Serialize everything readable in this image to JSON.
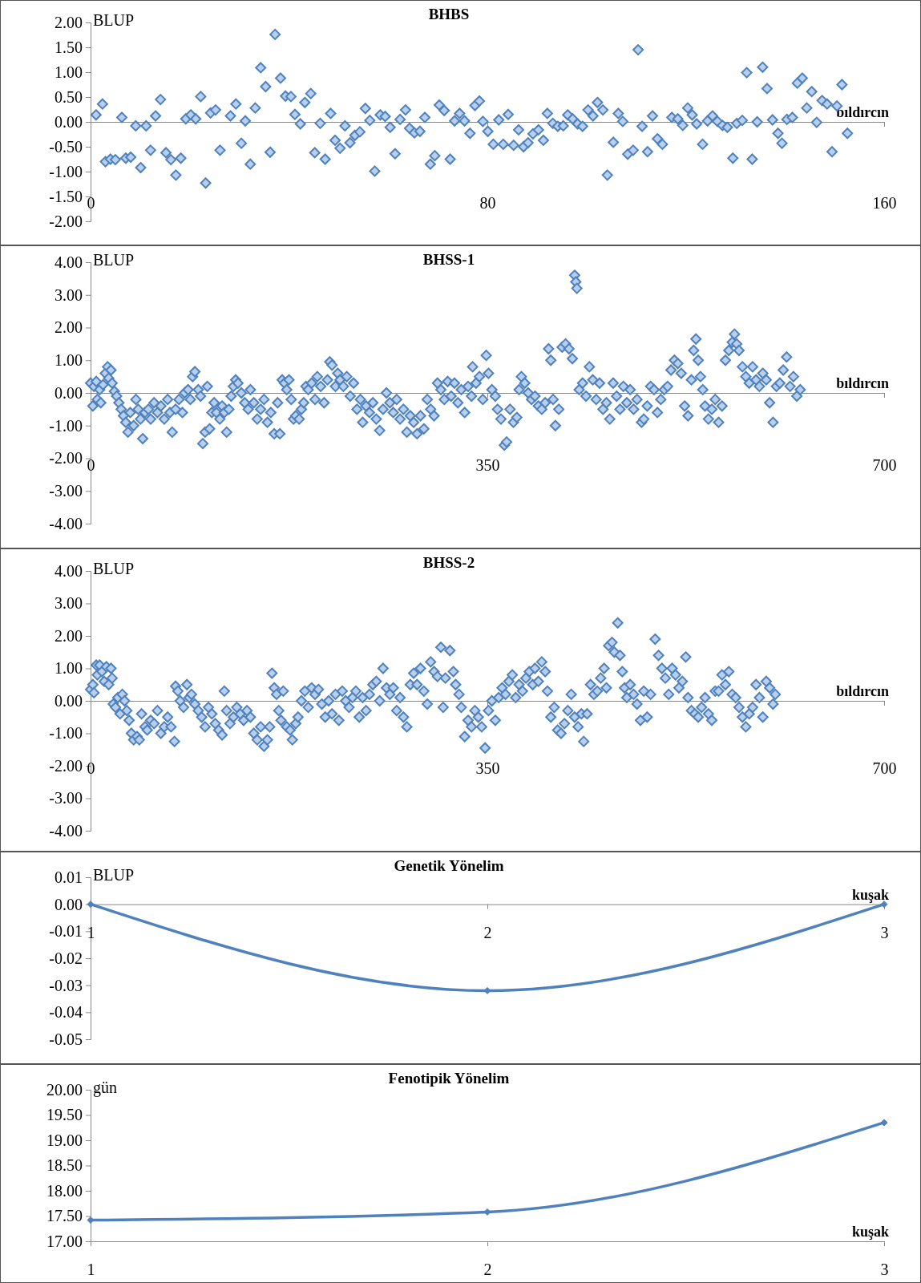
{
  "chart_data": [
    {
      "type": "scatter",
      "title": "BHBS",
      "xlabel": "bıldırcın",
      "ylabel": "BLUP",
      "color": "#4f81bd",
      "marker": "diamond",
      "xlim": [
        0,
        160
      ],
      "xticks": [
        0,
        80,
        160
      ],
      "ylim": [
        -2,
        2
      ],
      "yticks": [
        {
          "value": -2,
          "label": "-2.00"
        },
        {
          "value": -1.5,
          "label": "-1.50"
        },
        {
          "value": -1,
          "label": "-1.00"
        },
        {
          "value": -0.5,
          "label": "-0.50"
        },
        {
          "value": 0,
          "label": "0.00"
        },
        {
          "value": 0.5,
          "label": "0.50"
        },
        {
          "value": 1,
          "label": "1.00"
        },
        {
          "value": 1.5,
          "label": "1.50"
        },
        {
          "value": 2,
          "label": "2.00"
        }
      ],
      "x": [
        1.1,
        2.4,
        3.0,
        4.0,
        5.0,
        6.3,
        7.1,
        8.1,
        9.1,
        10.1,
        11.2,
        12.1,
        13.1,
        14.1,
        15.2,
        16.2,
        17.2,
        18.2,
        19.2,
        20.2,
        21.2,
        22.2,
        23.2,
        24.2,
        25.2,
        26.1,
        28.2,
        29.3,
        30.4,
        31.2,
        32.2,
        33.2,
        34.3,
        35.3,
        36.2,
        37.2,
        38.3,
        39.3,
        40.4,
        41.2,
        42.3,
        43.2,
        44.4,
        45.2,
        46.3,
        47.3,
        48.4,
        49.3,
        50.3,
        51.3,
        52.3,
        53.3,
        54.3,
        55.4,
        56.3,
        57.3,
        58.4,
        59.4,
        60.4,
        61.4,
        62.4,
        63.5,
        64.3,
        65.3,
        66.4,
        67.4,
        68.5,
        69.4,
        70.3,
        71.3,
        72.5,
        73.4,
        74.4,
        75.4,
        76.5,
        77.5,
        78.4,
        79.1,
        80.1,
        81.2,
        82.3,
        83.2,
        84.2,
        85.3,
        86.3,
        87.3,
        88.2,
        89.2,
        90.3,
        91.3,
        92.1,
        93.2,
        94.2,
        95.3,
        96.2,
        97.2,
        98.2,
        99.2,
        100.3,
        101.3,
        102.2,
        103.3,
        104.2,
        105.4,
        106.4,
        107.3,
        108.3,
        109.4,
        110.4,
        111.2,
        112.3,
        113.3,
        114.3,
        115.3,
        117.2,
        118.4,
        119.4,
        120.4,
        121.3,
        122.2,
        123.4,
        124.4,
        125.4,
        126.4,
        127.4,
        128.4,
        129.5,
        130.3,
        131.4,
        132.3,
        133.4,
        134.4,
        135.5,
        136.4,
        137.5,
        138.6,
        139.4,
        140.4,
        141.5,
        142.5,
        143.5,
        144.4,
        145.4,
        146.4,
        147.5,
        148.5,
        149.5,
        150.5,
        151.5,
        152.6
      ],
      "values": [
        0.14,
        0.36,
        -0.8,
        -0.75,
        -0.76,
        0.09,
        -0.73,
        -0.71,
        -0.08,
        -0.92,
        -0.08,
        -0.57,
        0.12,
        0.45,
        -0.62,
        -0.76,
        -1.07,
        -0.73,
        0.06,
        0.14,
        0.06,
        0.51,
        -1.23,
        0.18,
        0.24,
        -0.57,
        0.12,
        0.36,
        -0.43,
        0.02,
        -0.85,
        0.28,
        1.09,
        0.71,
        -0.61,
        1.76,
        0.88,
        0.52,
        0.51,
        0.15,
        -0.04,
        0.39,
        0.57,
        -0.62,
        -0.03,
        -0.75,
        0.17,
        -0.37,
        -0.53,
        -0.08,
        -0.42,
        -0.27,
        -0.2,
        0.27,
        0.03,
        -0.99,
        0.14,
        0.11,
        -0.11,
        -0.64,
        0.05,
        0.24,
        -0.13,
        -0.22,
        -0.19,
        0.09,
        -0.85,
        -0.68,
        0.34,
        0.23,
        -0.75,
        0.02,
        0.17,
        0.02,
        -0.23,
        0.33,
        0.42,
        0.01,
        -0.19,
        -0.45,
        0.04,
        -0.45,
        0.15,
        -0.47,
        -0.16,
        -0.5,
        -0.42,
        -0.24,
        -0.16,
        -0.37,
        0.17,
        -0.03,
        -0.09,
        -0.08,
        0.14,
        0.06,
        -0.04,
        -0.09,
        0.24,
        0.12,
        0.39,
        0.24,
        -1.07,
        -0.41,
        0.17,
        0.01,
        -0.65,
        -0.57,
        1.45,
        -0.09,
        -0.6,
        0.12,
        -0.34,
        -0.45,
        0.09,
        0.06,
        -0.07,
        0.28,
        0.14,
        -0.04,
        -0.45,
        0.02,
        0.12,
        0.01,
        -0.07,
        -0.11,
        -0.73,
        -0.03,
        0.03,
        0.99,
        -0.75,
        0.0,
        1.1,
        0.67,
        0.04,
        -0.23,
        -0.43,
        0.05,
        0.09,
        0.78,
        0.88,
        0.28,
        0.61,
        -0.01,
        0.43,
        0.36,
        -0.6,
        0.32,
        0.75,
        -0.23
      ]
    },
    {
      "type": "scatter",
      "title": "BHSS-1",
      "xlabel": "bıldırcın",
      "ylabel": "BLUP",
      "color": "#4f81bd",
      "marker": "diamond",
      "xlim": [
        0,
        700
      ],
      "xticks": [
        0,
        350,
        700
      ],
      "ylim": [
        -4,
        4
      ],
      "yticks": [
        {
          "value": -4,
          "label": "-4.00"
        },
        {
          "value": -3,
          "label": "-3.00"
        },
        {
          "value": -2,
          "label": "-2.00"
        },
        {
          "value": -1,
          "label": "-1.00"
        },
        {
          "value": 0,
          "label": "0.00"
        },
        {
          "value": 1,
          "label": "1.00"
        },
        {
          "value": 2,
          "label": "2.00"
        },
        {
          "value": 3,
          "label": "3.00"
        },
        {
          "value": 4,
          "label": "4.00"
        }
      ],
      "x": [
        0,
        2,
        3,
        5,
        6,
        8,
        9,
        11,
        13,
        15,
        16,
        18,
        19,
        21,
        23,
        25,
        27,
        29,
        31,
        33,
        35,
        38,
        40,
        42,
        44,
        46,
        48,
        51,
        53,
        56,
        59,
        62,
        65,
        68,
        70,
        72,
        75,
        78,
        81,
        83,
        86,
        88,
        90,
        92,
        95,
        97,
        99,
        101,
        103,
        105,
        107,
        109,
        111,
        114,
        116,
        118,
        120,
        122,
        124,
        126,
        128,
        130,
        133,
        136,
        139,
        141,
        144,
        147,
        150,
        153,
        156,
        159,
        162,
        165,
        167,
        169,
        171,
        173,
        175,
        177,
        179,
        181,
        184,
        186,
        188,
        190,
        192,
        195,
        198,
        200,
        203,
        206,
        209,
        211,
        213,
        216,
        218,
        220,
        223,
        226,
        229,
        232,
        235,
        238,
        240,
        243,
        246,
        249,
        252,
        255,
        258,
        261,
        264,
        267,
        270,
        273,
        276,
        279,
        282,
        285,
        288,
        291,
        294,
        297,
        300,
        303,
        306,
        309,
        312,
        315,
        318,
        321,
        324,
        327,
        330,
        333,
        336,
        337,
        340,
        343,
        346,
        349,
        351,
        354,
        357,
        359,
        362,
        365,
        367,
        370,
        373,
        376,
        378,
        380,
        383,
        386,
        389,
        392,
        395,
        398,
        401,
        404,
        406,
        408,
        410,
        413,
        416,
        419,
        422,
        425,
        427,
        428,
        429,
        431,
        434,
        437,
        440,
        443,
        446,
        449,
        452,
        455,
        458,
        461,
        464,
        467,
        470,
        473,
        476,
        479,
        482,
        486,
        488,
        491,
        494,
        497,
        500,
        503,
        506,
        509,
        512,
        515,
        518,
        521,
        524,
        527,
        530,
        532,
        534,
        536,
        538,
        540,
        542,
        545,
        548,
        551,
        554,
        557,
        560,
        563,
        566,
        568,
        570,
        572,
        575,
        578,
        581,
        584,
        587,
        590,
        593,
        596,
        599,
        602,
        605,
        608,
        611,
        614,
        617,
        620,
        623,
        626
      ],
      "values": [
        0.3,
        -0.4,
        0.2,
        0.35,
        -0.2,
        0.1,
        -0.3,
        0.25,
        0.6,
        0.8,
        0.45,
        0.7,
        0.3,
        0.05,
        -0.1,
        -0.3,
        -0.5,
        -0.7,
        -0.9,
        -1.2,
        -0.6,
        -1.0,
        -0.2,
        -0.5,
        -0.8,
        -1.4,
        -0.6,
        -0.5,
        -0.8,
        -0.3,
        -0.6,
        -0.4,
        -0.8,
        -0.2,
        -0.6,
        -1.2,
        -0.5,
        -0.2,
        -0.6,
        0,
        0.1,
        -0.2,
        0.5,
        0.65,
        0.1,
        -0.1,
        -1.55,
        -1.2,
        0.2,
        -1.1,
        -0.6,
        -0.3,
        -0.6,
        -0.8,
        -0.4,
        -0.6,
        -1.2,
        -0.5,
        -0.1,
        0.2,
        0.4,
        0.3,
        0,
        -0.3,
        -0.5,
        0.1,
        -0.3,
        -0.8,
        -0.5,
        -0.2,
        -0.9,
        -0.6,
        -1.25,
        -0.3,
        -1.25,
        0.4,
        0.3,
        0.1,
        0.4,
        -0.2,
        -0.8,
        -0.7,
        -0.8,
        -0.5,
        -0.3,
        0.2,
        0.1,
        0.3,
        -0.2,
        0.5,
        0.2,
        -0.3,
        0.4,
        0.95,
        0.85,
        0.2,
        0.6,
        0.4,
        0.2,
        0.5,
        -0.1,
        0.3,
        -0.5,
        -0.2,
        -0.9,
        -0.4,
        -0.6,
        -0.3,
        -0.8,
        -1.15,
        -0.5,
        0,
        -0.3,
        -0.6,
        -0.2,
        -0.8,
        -0.5,
        -1.2,
        -0.7,
        -0.9,
        -1.25,
        -0.7,
        -1.1,
        -0.2,
        -0.5,
        -0.7,
        0.3,
        0.1,
        -0.2,
        0.35,
        -0.1,
        0.3,
        -0.3,
        0.1,
        -0.6,
        0.2,
        -0.1,
        0.8,
        0.3,
        0.5,
        -0.2,
        1.15,
        0.6,
        0.1,
        -0.1,
        -0.5,
        -0.8,
        -1.6,
        -1.5,
        -0.5,
        -0.9,
        -0.75,
        0.1,
        0.5,
        0.3,
        0,
        -0.2,
        -0.1,
        -0.4,
        -0.5,
        -0.3,
        1.35,
        1.0,
        -0.2,
        -1.0,
        -0.5,
        1.4,
        1.5,
        1.35,
        1.05,
        3.6,
        3.4,
        3.2,
        0.1,
        0.3,
        -0.1,
        0.8,
        0.4,
        -0.2,
        0.3,
        -0.5,
        -0.3,
        -0.8,
        0.3,
        -0.1,
        -0.5,
        0.2,
        -0.3,
        0.1,
        -0.5,
        -0.2,
        -0.9,
        -0.8,
        -0.4,
        0.2,
        0.1,
        -0.6,
        -0.2,
        0.1,
        0.2,
        0.7,
        1.0,
        0.9,
        0.6,
        -0.4,
        -0.7,
        0.4,
        1.3,
        1.65,
        1.0,
        0.5,
        0.1,
        -0.4,
        -0.8,
        -0.5,
        -0.2,
        -0.9,
        -0.4,
        1.0,
        1.3,
        1.55,
        1.8,
        1.5,
        1.3,
        0.8,
        0.5,
        0.3,
        0.8,
        0.4,
        0.2,
        0.6,
        0.4,
        -0.3,
        -0.9,
        0.2,
        0.3,
        0.7,
        1.1,
        0.2,
        0.5,
        -0.1,
        0.1
      ]
    },
    {
      "type": "scatter",
      "title": "BHSS-2",
      "xlabel": "bıldırcın",
      "ylabel": "BLUP",
      "color": "#4f81bd",
      "marker": "diamond",
      "xlim": [
        0,
        700
      ],
      "xticks": [
        0,
        350,
        700
      ],
      "ylim": [
        -4,
        4
      ],
      "yticks": [
        {
          "value": -4,
          "label": "-4.00"
        },
        {
          "value": -3,
          "label": "-3.00"
        },
        {
          "value": -2,
          "label": "-2.00"
        },
        {
          "value": -1,
          "label": "-1.00"
        },
        {
          "value": 0,
          "label": "0.00"
        },
        {
          "value": 1,
          "label": "1.00"
        },
        {
          "value": 2,
          "label": "2.00"
        },
        {
          "value": 3,
          "label": "3.00"
        },
        {
          "value": 4,
          "label": "4.00"
        }
      ],
      "x": [
        0,
        2,
        3,
        5,
        6,
        8,
        10,
        12,
        14,
        16,
        18,
        19,
        20,
        22,
        24,
        26,
        28,
        30,
        32,
        34,
        36,
        38,
        41,
        43,
        45,
        48,
        50,
        53,
        56,
        59,
        62,
        65,
        68,
        71,
        74,
        75,
        77,
        79,
        82,
        85,
        87,
        89,
        92,
        95,
        98,
        101,
        104,
        107,
        110,
        113,
        116,
        118,
        120,
        123,
        126,
        129,
        132,
        135,
        138,
        141,
        144,
        147,
        150,
        153,
        156,
        158,
        160,
        162,
        164,
        166,
        168,
        170,
        173,
        176,
        178,
        181,
        183,
        186,
        189,
        192,
        195,
        198,
        201,
        204,
        207,
        210,
        213,
        216,
        219,
        222,
        225,
        228,
        231,
        234,
        237,
        240,
        243,
        246,
        249,
        252,
        255,
        258,
        261,
        264,
        267,
        270,
        273,
        276,
        279,
        282,
        285,
        288,
        291,
        294,
        297,
        300,
        303,
        306,
        309,
        311,
        313,
        317,
        320,
        322,
        325,
        327,
        330,
        333,
        336,
        339,
        342,
        345,
        348,
        351,
        354,
        357,
        360,
        363,
        366,
        369,
        372,
        375,
        378,
        381,
        384,
        387,
        390,
        392,
        395,
        398,
        401,
        403,
        406,
        409,
        412,
        415,
        418,
        421,
        424,
        427,
        430,
        433,
        435,
        438,
        441,
        444,
        447,
        450,
        453,
        455,
        457,
        460,
        462,
        465,
        467,
        469,
        471,
        473,
        476,
        479,
        482,
        485,
        488,
        491,
        494,
        498,
        501,
        504,
        507,
        510,
        513,
        516,
        519,
        522,
        525,
        527,
        530,
        533,
        536,
        539,
        542,
        545,
        548,
        551,
        554,
        557,
        560,
        563,
        566,
        569,
        572,
        575,
        578,
        581,
        584,
        587,
        590,
        593,
        596,
        599,
        602,
        604
      ],
      "values": [
        0.35,
        0.5,
        0.25,
        1.1,
        0.8,
        1.1,
        0.9,
        0.6,
        1.05,
        0.5,
        1.0,
        0.7,
        -0.1,
        -0.2,
        0.1,
        -0.4,
        0.2,
        0,
        -0.3,
        -0.6,
        -1.0,
        -1.2,
        -1.1,
        -1.2,
        -0.4,
        -0.8,
        -0.9,
        -0.6,
        -0.7,
        -0.3,
        -1.0,
        -0.8,
        -0.5,
        -0.8,
        -1.25,
        0.45,
        0.3,
        0,
        -0.2,
        0.5,
        0.1,
        0.2,
        -0.1,
        -0.3,
        -0.5,
        -0.8,
        -0.2,
        -0.4,
        -0.7,
        -0.9,
        -1.05,
        0.3,
        -0.3,
        -0.7,
        -0.5,
        -0.2,
        -0.4,
        -0.6,
        -0.3,
        -0.5,
        -1.0,
        -1.2,
        -0.8,
        -1.4,
        -1.2,
        -0.8,
        0.85,
        0.4,
        0.2,
        -0.3,
        -0.6,
        0.3,
        -0.8,
        -0.9,
        -1.2,
        -0.7,
        -0.5,
        0,
        0.3,
        -0.2,
        0.4,
        0.2,
        0.35,
        -0.1,
        -0.5,
        0,
        -0.4,
        0.2,
        -0.6,
        0.3,
        0,
        -0.2,
        0.1,
        0.3,
        -0.5,
        0.1,
        -0.3,
        0.2,
        0.5,
        0.6,
        0,
        1.0,
        0.4,
        0.2,
        0.4,
        -0.3,
        0.1,
        -0.5,
        -0.8,
        0.5,
        0.85,
        0.5,
        1.0,
        0.3,
        -0.1,
        1.2,
        0.9,
        0.75,
        1.65,
        -0.2,
        0.7,
        1.55,
        0.9,
        0.5,
        0.2,
        -0.2,
        -1.1,
        -0.6,
        -0.8,
        -0.3,
        -0.5,
        -0.8,
        -1.45,
        -0.3,
        0,
        -0.6,
        0.1,
        0.4,
        0.2,
        0.6,
        0.8,
        0.1,
        0.5,
        0.3,
        0.7,
        0.9,
        0.5,
        1.0,
        0.6,
        1.2,
        0.9,
        0.3,
        -0.5,
        -0.2,
        -0.9,
        -1.0,
        -0.7,
        -0.3,
        0.2,
        -0.5,
        -0.8,
        -0.4,
        -1.25,
        -0.4,
        0.5,
        0.2,
        0.3,
        0.7,
        1.0,
        0.4,
        1.7,
        1.8,
        1.5,
        2.4,
        1.4,
        0.9,
        0.4,
        0.1,
        0.5,
        0.2,
        -0.1,
        -0.6,
        0.3,
        -0.5,
        0.2,
        1.9,
        1.4,
        1.0,
        0.7,
        0.2,
        1.0,
        0.8,
        0.4,
        0.6,
        1.35,
        0.1,
        -0.3,
        -0.4,
        -0.5,
        -0.2,
        0.1,
        -0.4,
        -0.6,
        0.3,
        0.3,
        0.8,
        0.5,
        0.9,
        0.2,
        0.1,
        -0.2,
        -0.5,
        -0.8,
        -0.4,
        -0.2,
        0.5,
        0.1,
        -0.5,
        0.6,
        0.4,
        -0.1,
        0.2
      ]
    },
    {
      "type": "line",
      "title": "Genetik Yönelim",
      "xlabel": "kuşak",
      "ylabel": "BLUP",
      "color": "#4f81bd",
      "marker": "diamond",
      "xlim": [
        1,
        3
      ],
      "xticks": [
        1,
        2,
        3
      ],
      "ylim": [
        -0.05,
        0.01
      ],
      "yticks": [
        {
          "value": -0.05,
          "label": "-0.05"
        },
        {
          "value": -0.04,
          "label": "-0.04"
        },
        {
          "value": -0.03,
          "label": "-0.03"
        },
        {
          "value": -0.02,
          "label": "-0.02"
        },
        {
          "value": -0.01,
          "label": "-0.01"
        },
        {
          "value": 0,
          "label": "0.00"
        },
        {
          "value": 0.01,
          "label": "0.01"
        }
      ],
      "x": [
        1,
        2,
        3
      ],
      "values": [
        0,
        -0.032,
        0
      ]
    },
    {
      "type": "line",
      "title": "Fenotipik Yönelim",
      "xlabel": "kuşak",
      "ylabel": "gün",
      "color": "#4f81bd",
      "marker": "diamond",
      "xlim": [
        1,
        3
      ],
      "xticks": [
        1,
        2,
        3
      ],
      "ylim": [
        17,
        20
      ],
      "yticks": [
        {
          "value": 17,
          "label": "17.00"
        },
        {
          "value": 17.5,
          "label": "17.50"
        },
        {
          "value": 18,
          "label": "18.00"
        },
        {
          "value": 18.5,
          "label": "18.50"
        },
        {
          "value": 19,
          "label": "19.00"
        },
        {
          "value": 19.5,
          "label": "19.50"
        },
        {
          "value": 20,
          "label": "20.00"
        }
      ],
      "x": [
        1,
        2,
        3
      ],
      "values": [
        17.42,
        17.58,
        19.35
      ]
    }
  ]
}
